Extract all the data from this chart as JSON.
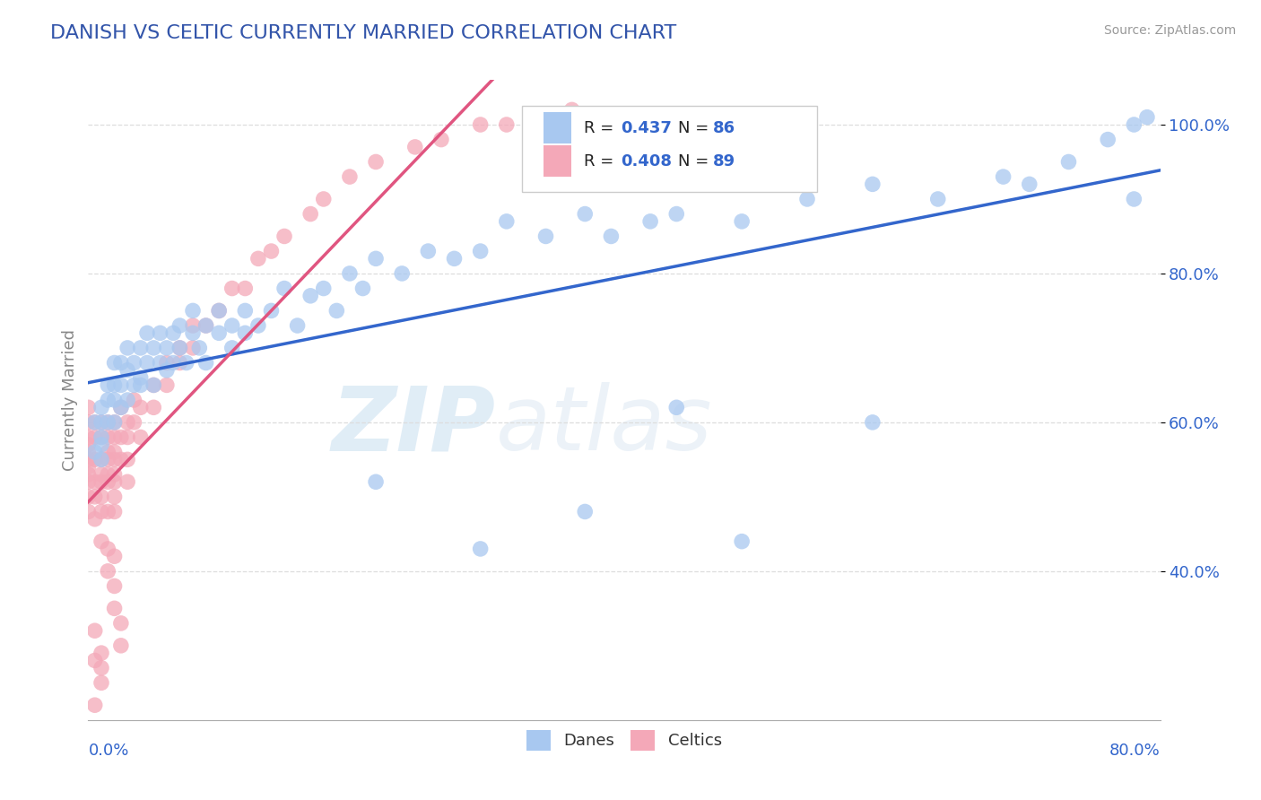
{
  "title": "DANISH VS CELTIC CURRENTLY MARRIED CORRELATION CHART",
  "source_text": "Source: ZipAtlas.com",
  "ylabel": "Currently Married",
  "y_tick_labels": [
    "40.0%",
    "60.0%",
    "80.0%",
    "100.0%"
  ],
  "y_tick_values": [
    0.4,
    0.6,
    0.8,
    1.0
  ],
  "xlim": [
    0.0,
    0.82
  ],
  "ylim": [
    0.2,
    1.06
  ],
  "legend_label1": "Danes",
  "legend_label2": "Celtics",
  "danes_color": "#a8c8f0",
  "celtics_color": "#f4a8b8",
  "danes_line_color": "#3366cc",
  "celtics_line_color": "#e05580",
  "ref_line_color": "#cccccc",
  "background_color": "#ffffff",
  "title_color": "#3355aa",
  "source_color": "#999999",
  "watermark1": "ZIP",
  "watermark2": "atlas",
  "danes_x": [
    0.005,
    0.005,
    0.01,
    0.01,
    0.01,
    0.01,
    0.01,
    0.015,
    0.015,
    0.015,
    0.02,
    0.02,
    0.02,
    0.02,
    0.025,
    0.025,
    0.025,
    0.03,
    0.03,
    0.03,
    0.035,
    0.035,
    0.04,
    0.04,
    0.04,
    0.045,
    0.045,
    0.05,
    0.05,
    0.055,
    0.055,
    0.06,
    0.06,
    0.065,
    0.065,
    0.07,
    0.07,
    0.075,
    0.08,
    0.08,
    0.085,
    0.09,
    0.09,
    0.1,
    0.1,
    0.11,
    0.11,
    0.12,
    0.12,
    0.13,
    0.14,
    0.15,
    0.16,
    0.17,
    0.18,
    0.19,
    0.2,
    0.21,
    0.22,
    0.24,
    0.26,
    0.28,
    0.3,
    0.32,
    0.35,
    0.38,
    0.4,
    0.43,
    0.45,
    0.5,
    0.55,
    0.6,
    0.65,
    0.7,
    0.72,
    0.75,
    0.78,
    0.8,
    0.8,
    0.81,
    0.38,
    0.5,
    0.3,
    0.22,
    0.45,
    0.6
  ],
  "danes_y": [
    0.56,
    0.6,
    0.57,
    0.6,
    0.62,
    0.55,
    0.58,
    0.6,
    0.63,
    0.65,
    0.6,
    0.63,
    0.65,
    0.68,
    0.62,
    0.65,
    0.68,
    0.63,
    0.67,
    0.7,
    0.65,
    0.68,
    0.66,
    0.7,
    0.65,
    0.68,
    0.72,
    0.7,
    0.65,
    0.68,
    0.72,
    0.7,
    0.67,
    0.72,
    0.68,
    0.7,
    0.73,
    0.68,
    0.72,
    0.75,
    0.7,
    0.73,
    0.68,
    0.72,
    0.75,
    0.73,
    0.7,
    0.75,
    0.72,
    0.73,
    0.75,
    0.78,
    0.73,
    0.77,
    0.78,
    0.75,
    0.8,
    0.78,
    0.82,
    0.8,
    0.83,
    0.82,
    0.83,
    0.87,
    0.85,
    0.88,
    0.85,
    0.87,
    0.88,
    0.87,
    0.9,
    0.92,
    0.9,
    0.93,
    0.92,
    0.95,
    0.98,
    1.0,
    0.9,
    1.01,
    0.48,
    0.44,
    0.43,
    0.52,
    0.62,
    0.6
  ],
  "celtics_x": [
    0.0,
    0.0,
    0.0,
    0.0,
    0.0,
    0.0,
    0.0,
    0.0,
    0.0,
    0.0,
    0.0,
    0.005,
    0.005,
    0.005,
    0.005,
    0.005,
    0.01,
    0.01,
    0.01,
    0.01,
    0.01,
    0.01,
    0.01,
    0.015,
    0.015,
    0.015,
    0.015,
    0.015,
    0.015,
    0.015,
    0.02,
    0.02,
    0.02,
    0.02,
    0.02,
    0.02,
    0.02,
    0.02,
    0.025,
    0.025,
    0.025,
    0.03,
    0.03,
    0.03,
    0.03,
    0.035,
    0.035,
    0.04,
    0.04,
    0.05,
    0.05,
    0.06,
    0.06,
    0.07,
    0.07,
    0.08,
    0.08,
    0.09,
    0.1,
    0.11,
    0.12,
    0.13,
    0.14,
    0.15,
    0.17,
    0.18,
    0.2,
    0.22,
    0.25,
    0.27,
    0.3,
    0.32,
    0.35,
    0.37,
    0.005,
    0.01,
    0.015,
    0.02,
    0.015,
    0.02,
    0.02,
    0.025,
    0.025,
    0.01,
    0.005,
    0.005,
    0.01,
    0.005,
    0.01
  ],
  "celtics_y": [
    0.52,
    0.55,
    0.53,
    0.5,
    0.56,
    0.58,
    0.48,
    0.6,
    0.54,
    0.57,
    0.62,
    0.52,
    0.55,
    0.58,
    0.5,
    0.6,
    0.55,
    0.52,
    0.58,
    0.6,
    0.5,
    0.53,
    0.48,
    0.55,
    0.58,
    0.52,
    0.6,
    0.53,
    0.48,
    0.56,
    0.55,
    0.52,
    0.58,
    0.53,
    0.5,
    0.6,
    0.48,
    0.56,
    0.58,
    0.55,
    0.62,
    0.58,
    0.55,
    0.6,
    0.52,
    0.6,
    0.63,
    0.62,
    0.58,
    0.65,
    0.62,
    0.68,
    0.65,
    0.7,
    0.68,
    0.73,
    0.7,
    0.73,
    0.75,
    0.78,
    0.78,
    0.82,
    0.83,
    0.85,
    0.88,
    0.9,
    0.93,
    0.95,
    0.97,
    0.98,
    1.0,
    1.0,
    1.01,
    1.02,
    0.47,
    0.44,
    0.43,
    0.42,
    0.4,
    0.38,
    0.35,
    0.33,
    0.3,
    0.25,
    0.28,
    0.22,
    0.27,
    0.32,
    0.29
  ]
}
